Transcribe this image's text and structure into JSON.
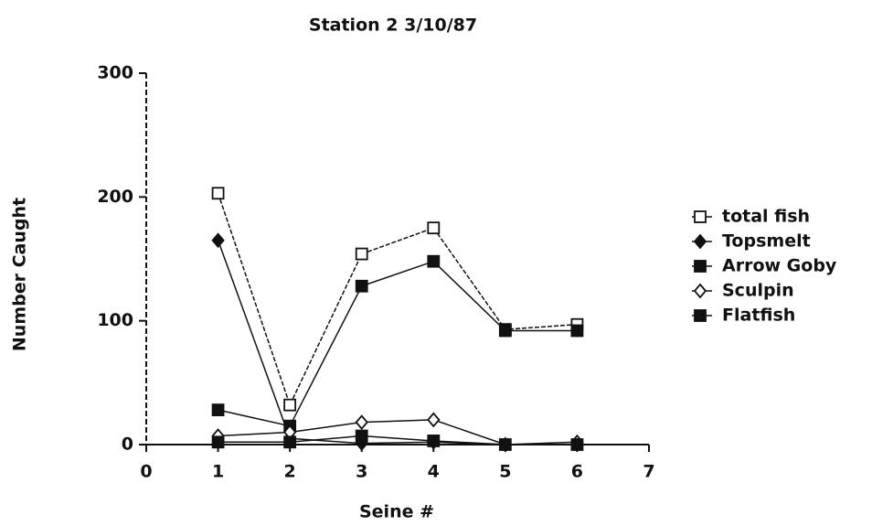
{
  "chart_data": {
    "type": "line",
    "title": "Station 2 3/10/87",
    "x_label": "Seine #",
    "y_label": "Number Caught",
    "x": [
      1,
      2,
      3,
      4,
      5,
      6
    ],
    "series": [
      {
        "name": "total fish",
        "color": "#111111",
        "marker": "open-square",
        "values": [
          203,
          32,
          154,
          175,
          93,
          97
        ]
      },
      {
        "name": "Topsmelt",
        "color": "#111111",
        "marker": "filled-diamond",
        "values": [
          165,
          5,
          1,
          2,
          0,
          0
        ]
      },
      {
        "name": "Arrow Goby",
        "color": "#111111",
        "marker": "filled-square",
        "values": [
          28,
          15,
          128,
          148,
          92,
          92
        ]
      },
      {
        "name": "Sculpin",
        "color": "#111111",
        "marker": "open-diamond",
        "values": [
          7,
          10,
          18,
          20,
          0,
          2
        ]
      },
      {
        "name": "Flatfish",
        "color": "#111111",
        "marker": "filled-square",
        "values": [
          2,
          2,
          7,
          3,
          0,
          0
        ]
      }
    ],
    "xlim": [
      0,
      7
    ],
    "xticks": [
      0,
      1,
      2,
      3,
      4,
      5,
      6,
      7
    ],
    "ylim": [
      0,
      300
    ],
    "yticks": [
      0,
      100,
      200,
      300
    ],
    "legend": "right"
  }
}
